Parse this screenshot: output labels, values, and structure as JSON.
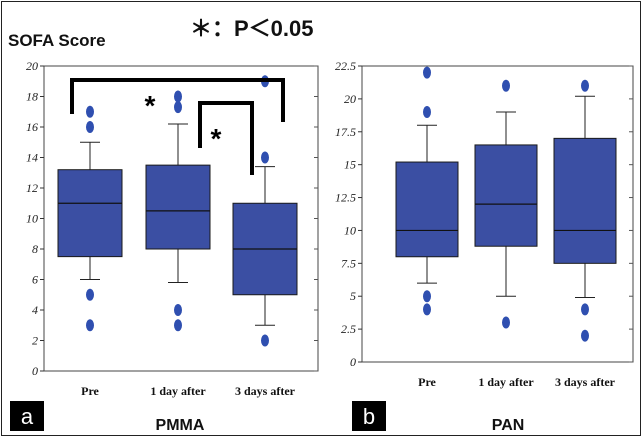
{
  "figure": {
    "y_axis_title": "SOFA Score",
    "significance_legend": "＊：P＜0.05",
    "significance_marker": "*"
  },
  "colors": {
    "box_fill": "#3b4fa3",
    "box_stroke": "#1a1a1a",
    "outlier": "#2f4fb0",
    "frame": "#222222",
    "panel_label_bg": "#000000",
    "panel_label_fg": "#ffffff"
  },
  "chart_data": [
    {
      "type": "box",
      "panel_label": "a",
      "xlabel": "PMMA",
      "ylabel": "SOFA Score",
      "ylim": [
        0,
        20
      ],
      "yticks": [
        0,
        2,
        4,
        6,
        8,
        10,
        12,
        14,
        16,
        18,
        20
      ],
      "ytick_labels": [
        "0",
        "2",
        "4",
        "6",
        "8",
        "10",
        "12",
        "14",
        "16",
        "18",
        "20"
      ],
      "categories": [
        "Pre",
        "1 day after",
        "3 days after"
      ],
      "boxes": [
        {
          "whisker_low": 6,
          "q1": 7.5,
          "median": 11,
          "q3": 13.2,
          "whisker_high": 15,
          "outliers": [
            3,
            5,
            16,
            17
          ]
        },
        {
          "whisker_low": 5.8,
          "q1": 8,
          "median": 10.5,
          "q3": 13.5,
          "whisker_high": 16.2,
          "outliers": [
            3,
            4,
            17.3,
            18
          ]
        },
        {
          "whisker_low": 3,
          "q1": 5,
          "median": 8,
          "q3": 11,
          "whisker_high": 13.4,
          "outliers": [
            2,
            14,
            19
          ]
        }
      ],
      "significance": [
        {
          "from": 0,
          "to": 2,
          "label": "*"
        },
        {
          "from": 1,
          "to": 2,
          "label": "*"
        }
      ]
    },
    {
      "type": "box",
      "panel_label": "b",
      "xlabel": "PAN",
      "ylim": [
        0,
        22.5
      ],
      "yticks": [
        0,
        2.5,
        5,
        7.5,
        10,
        12.5,
        15,
        17.5,
        20,
        22.5
      ],
      "ytick_labels": [
        "0",
        "2.5",
        "5",
        "7.5",
        "10",
        "12.5",
        "15",
        "17.5",
        "20",
        "22.5"
      ],
      "categories": [
        "Pre",
        "1 day after",
        "3 days after"
      ],
      "boxes": [
        {
          "whisker_low": 6,
          "q1": 8,
          "median": 10,
          "q3": 15.2,
          "whisker_high": 18,
          "outliers": [
            4,
            5,
            19,
            22
          ]
        },
        {
          "whisker_low": 5,
          "q1": 8.8,
          "median": 12,
          "q3": 16.5,
          "whisker_high": 19,
          "outliers": [
            3,
            21
          ]
        },
        {
          "whisker_low": 4.9,
          "q1": 7.5,
          "median": 10,
          "q3": 17,
          "whisker_high": 20.2,
          "outliers": [
            2,
            4,
            21
          ]
        }
      ],
      "significance": []
    }
  ]
}
